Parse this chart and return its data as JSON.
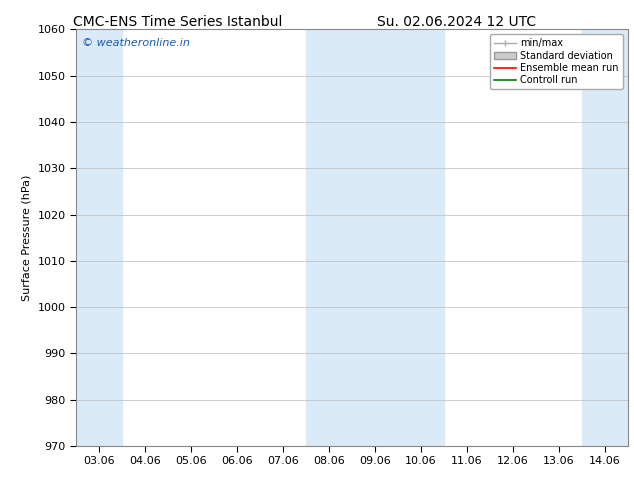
{
  "title_left": "CMC-ENS Time Series Istanbul",
  "title_right": "Su. 02.06.2024 12 UTC",
  "ylabel": "Surface Pressure (hPa)",
  "ylim": [
    970,
    1060
  ],
  "yticks": [
    970,
    980,
    990,
    1000,
    1010,
    1020,
    1030,
    1040,
    1050,
    1060
  ],
  "xtick_labels": [
    "03.06",
    "04.06",
    "05.06",
    "06.06",
    "07.06",
    "08.06",
    "09.06",
    "10.06",
    "11.06",
    "12.06",
    "13.06",
    "14.06"
  ],
  "shaded_x_indices": [
    0,
    5,
    6,
    7,
    11,
    12
  ],
  "band_color": "#daeaf7",
  "watermark": "© weatheronline.in",
  "watermark_color": "#1a5cb0",
  "background_color": "#ffffff",
  "grid_color": "#bbbbbb",
  "title_fontsize": 10,
  "axis_fontsize": 8,
  "tick_fontsize": 8,
  "legend_min_max_color": "#aaaaaa",
  "legend_std_color": "#cccccc",
  "legend_ensemble_color": "red",
  "legend_control_color": "green"
}
